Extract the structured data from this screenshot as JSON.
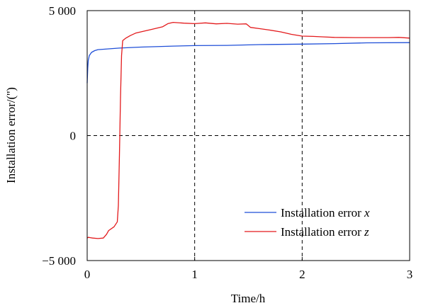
{
  "chart_data": {
    "type": "line",
    "xlabel": "Time/h",
    "ylabel": "Installation error/('')",
    "xlim": [
      0,
      3
    ],
    "ylim": [
      -5000,
      5000
    ],
    "x_ticks": [
      0,
      1,
      2,
      3
    ],
    "x_tick_labels": [
      "0",
      "1",
      "2",
      "3"
    ],
    "y_ticks": [
      -5000,
      0,
      5000
    ],
    "y_tick_labels": [
      "−5 000",
      "0",
      "5 000"
    ],
    "reference_lines": {
      "x": [
        1,
        2
      ],
      "y": [
        0
      ]
    },
    "legend_position": "bottom-right",
    "series": [
      {
        "name": "Installation error x",
        "legend_prefix": "Installation error ",
        "legend_var": "x",
        "color": "#1f4fd8",
        "points": [
          [
            0,
            2100
          ],
          [
            0.005,
            2700
          ],
          [
            0.01,
            3000
          ],
          [
            0.02,
            3200
          ],
          [
            0.04,
            3330
          ],
          [
            0.07,
            3400
          ],
          [
            0.1,
            3440
          ],
          [
            0.2,
            3470
          ],
          [
            0.3,
            3500
          ],
          [
            0.5,
            3540
          ],
          [
            0.8,
            3580
          ],
          [
            1.0,
            3600
          ],
          [
            1.3,
            3610
          ],
          [
            1.6,
            3640
          ],
          [
            2.0,
            3660
          ],
          [
            2.3,
            3680
          ],
          [
            2.6,
            3710
          ],
          [
            3.0,
            3720
          ]
        ]
      },
      {
        "name": "Installation error z",
        "legend_prefix": "Installation error ",
        "legend_var": "z",
        "color": "#e31a1c",
        "points": [
          [
            0,
            -4100
          ],
          [
            0.01,
            -4070
          ],
          [
            0.05,
            -4100
          ],
          [
            0.1,
            -4120
          ],
          [
            0.15,
            -4100
          ],
          [
            0.18,
            -3950
          ],
          [
            0.2,
            -3800
          ],
          [
            0.25,
            -3650
          ],
          [
            0.28,
            -3450
          ],
          [
            0.29,
            -2800
          ],
          [
            0.3,
            -800
          ],
          [
            0.31,
            1500
          ],
          [
            0.32,
            3200
          ],
          [
            0.33,
            3800
          ],
          [
            0.36,
            3900
          ],
          [
            0.4,
            4000
          ],
          [
            0.45,
            4100
          ],
          [
            0.5,
            4150
          ],
          [
            0.6,
            4250
          ],
          [
            0.7,
            4350
          ],
          [
            0.75,
            4480
          ],
          [
            0.8,
            4530
          ],
          [
            0.9,
            4500
          ],
          [
            1.0,
            4480
          ],
          [
            1.1,
            4510
          ],
          [
            1.2,
            4470
          ],
          [
            1.3,
            4490
          ],
          [
            1.4,
            4460
          ],
          [
            1.48,
            4470
          ],
          [
            1.52,
            4330
          ],
          [
            1.6,
            4280
          ],
          [
            1.7,
            4220
          ],
          [
            1.8,
            4150
          ],
          [
            1.9,
            4050
          ],
          [
            2.0,
            3980
          ],
          [
            2.1,
            3970
          ],
          [
            2.2,
            3950
          ],
          [
            2.3,
            3930
          ],
          [
            2.5,
            3920
          ],
          [
            2.8,
            3920
          ],
          [
            2.9,
            3930
          ],
          [
            3.0,
            3900
          ]
        ]
      }
    ]
  }
}
